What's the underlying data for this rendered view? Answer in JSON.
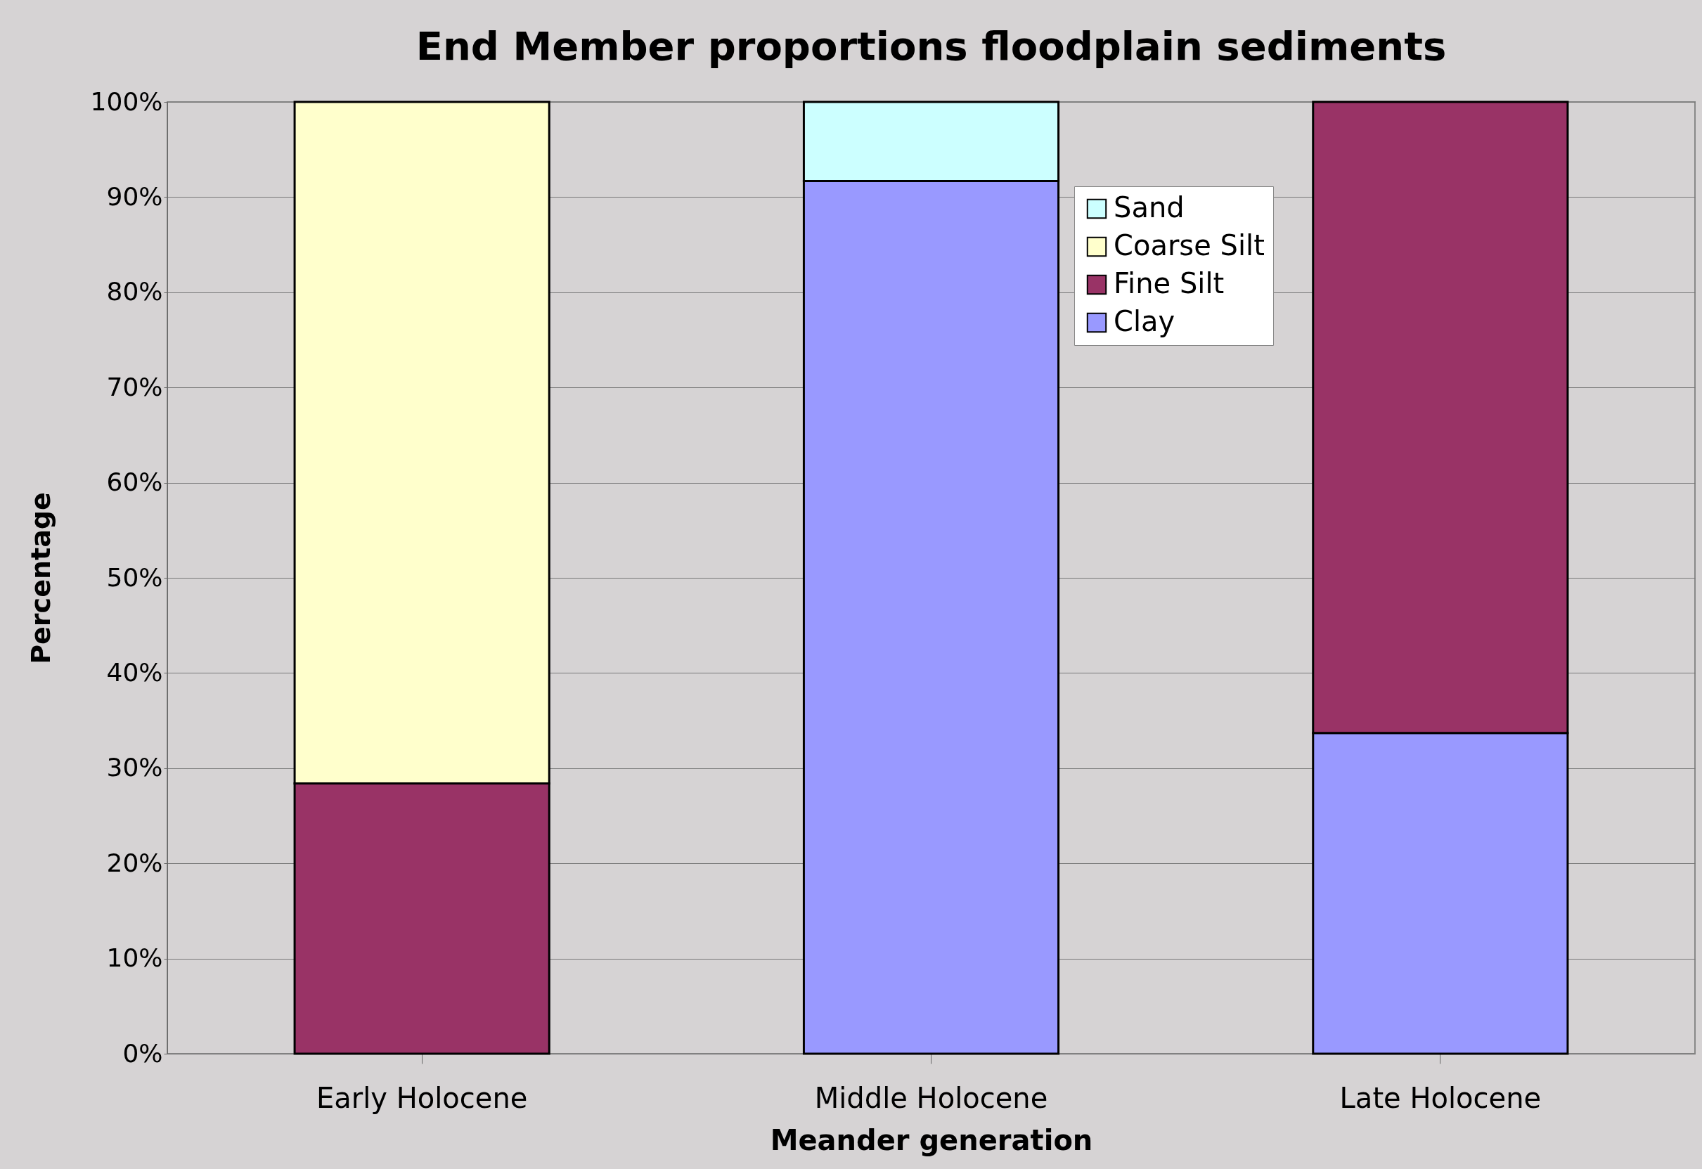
{
  "chart_data": {
    "type": "bar",
    "stacked": true,
    "title": "End Member proportions floodplain sediments",
    "xlabel": "Meander generation",
    "ylabel": "Percentage",
    "categories": [
      "Early Holocene",
      "Middle Holocene",
      "Late Holocene"
    ],
    "series": [
      {
        "name": "Clay",
        "color": "#9999ff",
        "values": [
          0,
          91.7,
          33.7
        ]
      },
      {
        "name": "Fine Silt",
        "color": "#993366",
        "values": [
          28.4,
          0,
          66.3
        ]
      },
      {
        "name": "Coarse Silt",
        "color": "#ffffcc",
        "values": [
          71.6,
          0,
          0
        ]
      },
      {
        "name": "Sand",
        "color": "#ccffff",
        "values": [
          0,
          8.3,
          0
        ]
      }
    ],
    "ylim": [
      0,
      100
    ],
    "yticks": [
      {
        "value": 0,
        "label": "0%"
      },
      {
        "value": 10,
        "label": "10%"
      },
      {
        "value": 20,
        "label": "20%"
      },
      {
        "value": 30,
        "label": "30%"
      },
      {
        "value": 40,
        "label": "40%"
      },
      {
        "value": 50,
        "label": "50%"
      },
      {
        "value": 60,
        "label": "60%"
      },
      {
        "value": 70,
        "label": "70%"
      },
      {
        "value": 80,
        "label": "80%"
      },
      {
        "value": 90,
        "label": "90%"
      },
      {
        "value": 100,
        "label": "100%"
      }
    ],
    "grid": "y",
    "legend": "top"
  }
}
